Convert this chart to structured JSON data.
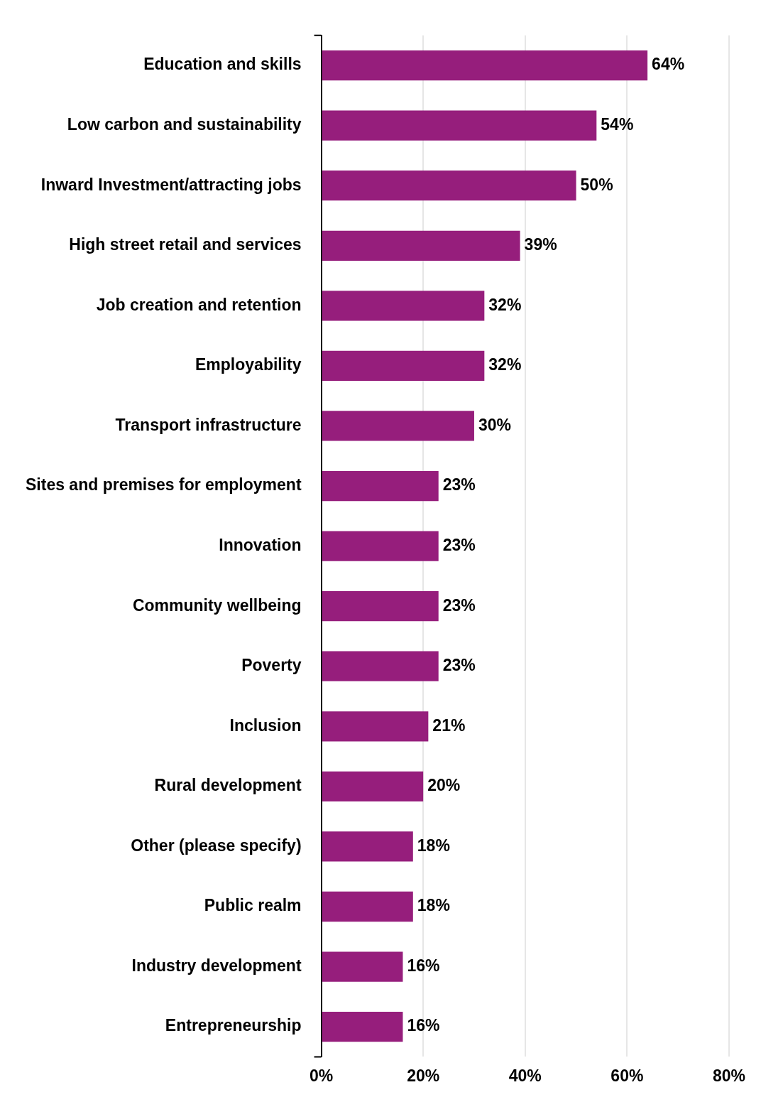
{
  "chart_data": {
    "type": "bar",
    "orientation": "horizontal",
    "categories": [
      "Education and skills",
      "Low carbon and sustainability",
      "Inward Investment/attracting jobs",
      "High street retail and services",
      "Job creation and retention",
      "Employability",
      "Transport infrastructure",
      "Sites and premises for employment",
      "Innovation",
      "Community wellbeing",
      "Poverty",
      "Inclusion",
      "Rural development",
      "Other (please specify)",
      "Public realm",
      "Industry development",
      "Entrepreneurship"
    ],
    "values": [
      64,
      54,
      50,
      39,
      32,
      32,
      30,
      23,
      23,
      23,
      23,
      21,
      20,
      18,
      18,
      16,
      16
    ],
    "value_labels": [
      "64%",
      "54%",
      "50%",
      "39%",
      "32%",
      "32%",
      "30%",
      "23%",
      "23%",
      "23%",
      "23%",
      "21%",
      "20%",
      "18%",
      "18%",
      "16%",
      "16%"
    ],
    "color": "#961e7c",
    "xlim": [
      0,
      80
    ],
    "xticks": [
      {
        "value": 0,
        "label": "0%"
      },
      {
        "value": 20,
        "label": "20%"
      },
      {
        "value": 40,
        "label": "40%"
      },
      {
        "value": 60,
        "label": "60%"
      },
      {
        "value": 80,
        "label": "80%"
      }
    ],
    "grid": "x",
    "legend": false
  }
}
